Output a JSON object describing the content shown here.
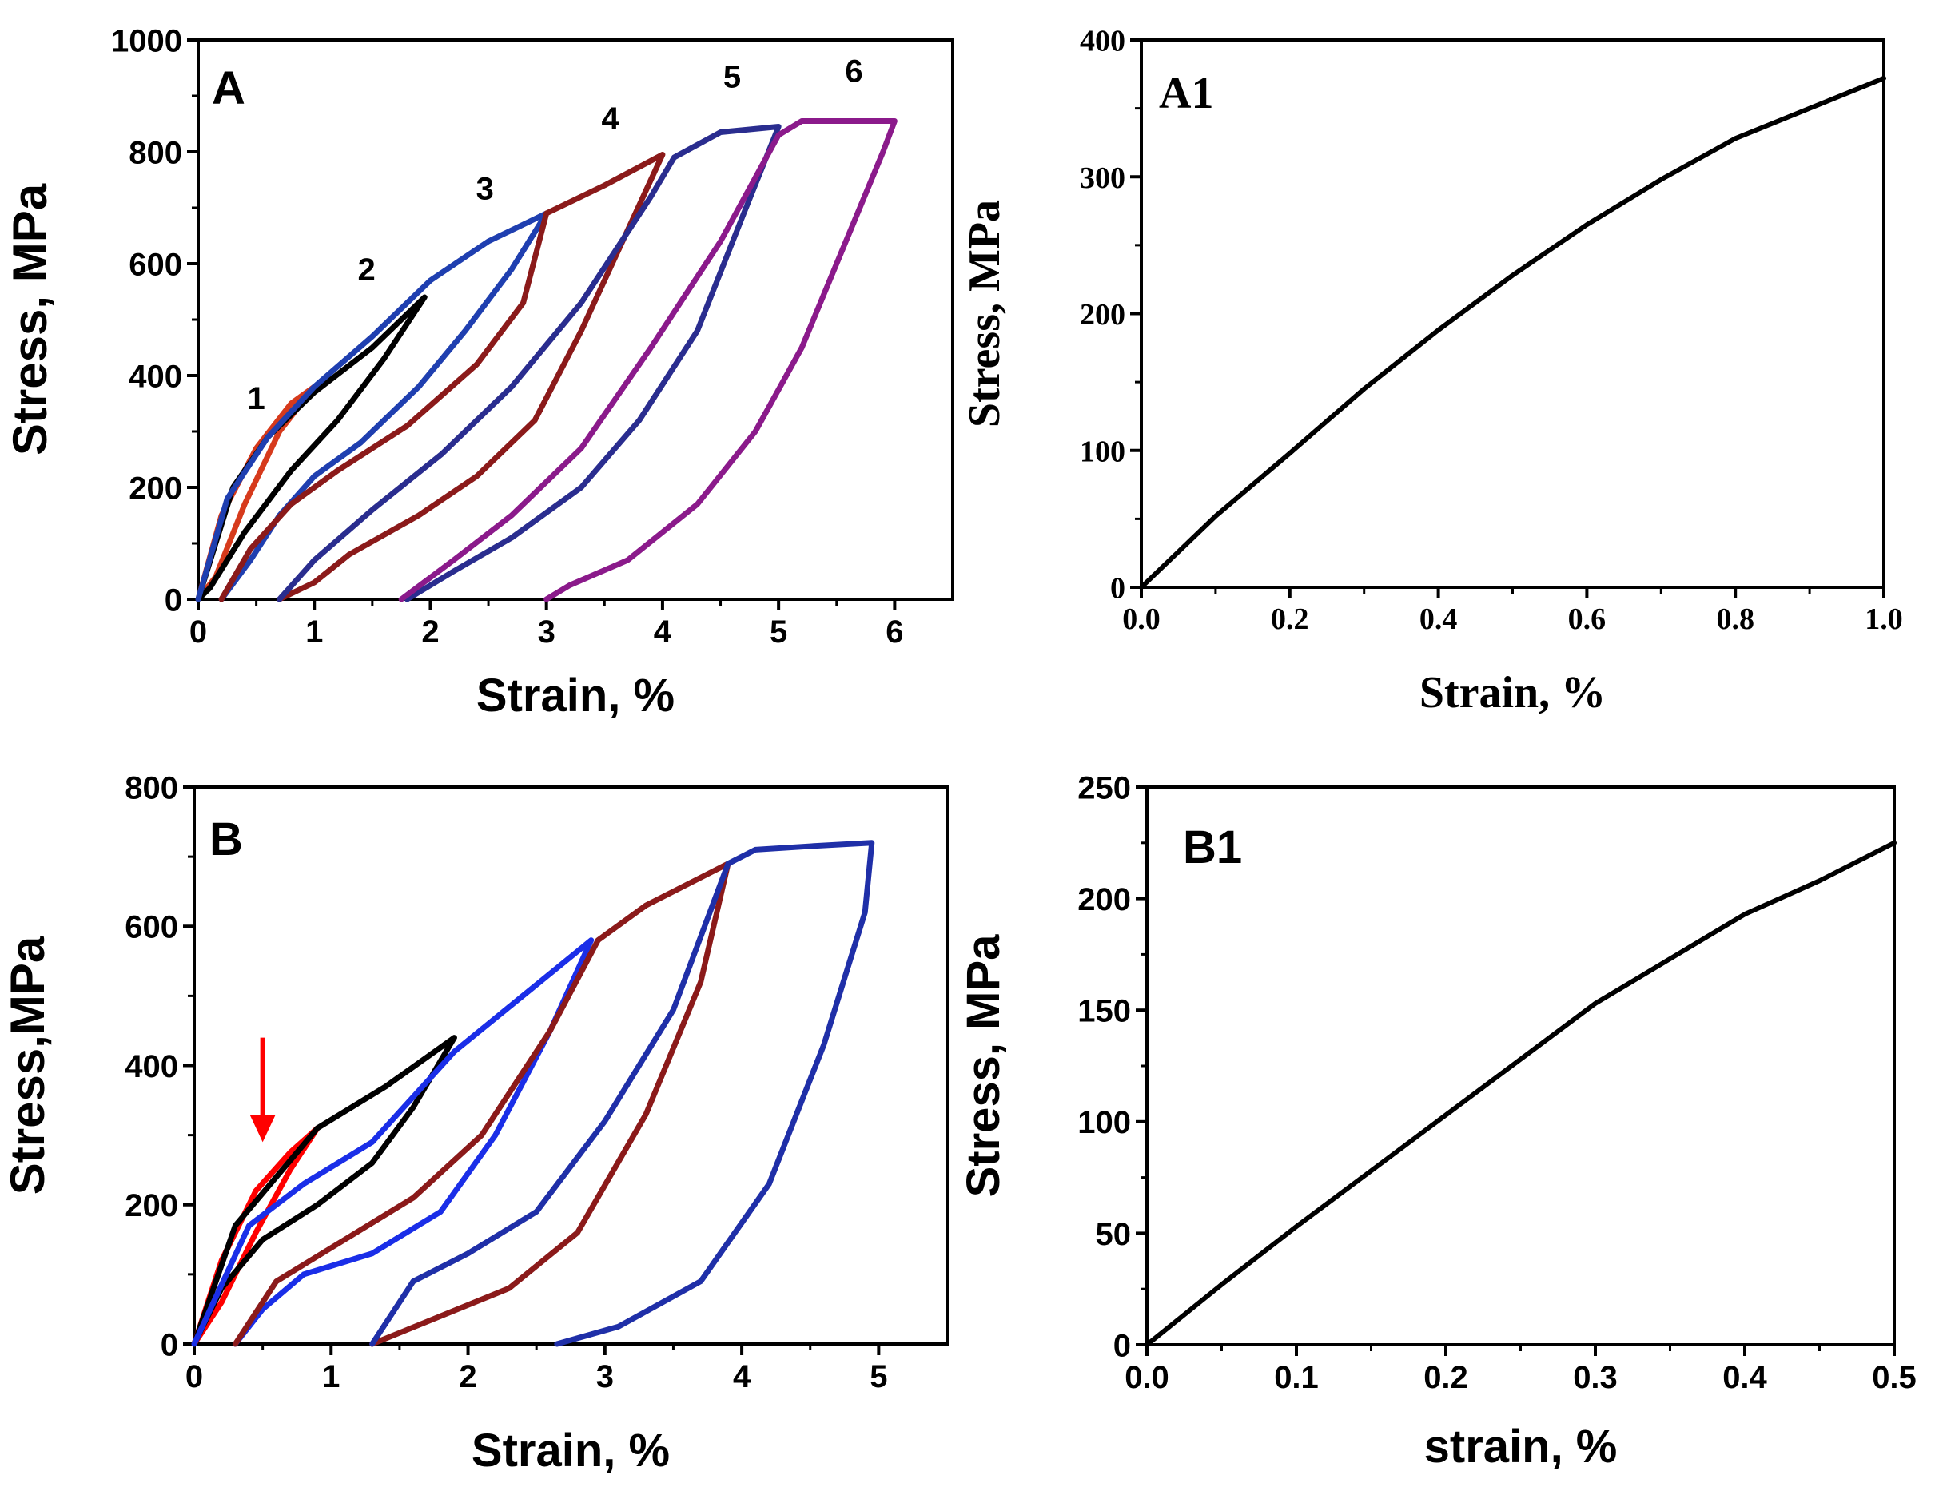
{
  "chart_data": [
    {
      "id": "A",
      "type": "line",
      "panel_label": "A",
      "font": "sans",
      "xlabel": "Strain, %",
      "ylabel": "Stress, MPa",
      "xlim": [
        0,
        6.5
      ],
      "ylim": [
        0,
        1000
      ],
      "xticks": [
        0,
        1,
        2,
        3,
        4,
        5,
        6
      ],
      "xtick_labels": [
        "0",
        "1",
        "2",
        "3",
        "4",
        "5",
        "6"
      ],
      "yticks": [
        0,
        200,
        400,
        600,
        800,
        1000
      ],
      "ytick_labels": [
        "0",
        "200",
        "400",
        "600",
        "800",
        "1000"
      ],
      "annotations": [
        {
          "text": "1",
          "x": 0.5,
          "y": 340
        },
        {
          "text": "2",
          "x": 1.45,
          "y": 570
        },
        {
          "text": "3",
          "x": 2.47,
          "y": 715
        },
        {
          "text": "4",
          "x": 3.55,
          "y": 840
        },
        {
          "text": "5",
          "x": 4.6,
          "y": 915
        },
        {
          "text": "6",
          "x": 5.65,
          "y": 925
        }
      ],
      "series": [
        {
          "color": "#d63a1c",
          "values": [
            [
              0,
              0
            ],
            [
              0.2,
              150
            ],
            [
              0.5,
              270
            ],
            [
              0.8,
              350
            ],
            [
              1.0,
              380
            ],
            [
              0.7,
              300
            ],
            [
              0.4,
              170
            ],
            [
              0.15,
              40
            ],
            [
              0,
              0
            ]
          ]
        },
        {
          "color": "#000000",
          "values": [
            [
              0,
              0
            ],
            [
              0.3,
              200
            ],
            [
              0.6,
              290
            ],
            [
              1.0,
              370
            ],
            [
              1.5,
              450
            ],
            [
              1.95,
              540
            ],
            [
              1.6,
              430
            ],
            [
              1.2,
              320
            ],
            [
              0.8,
              230
            ],
            [
              0.4,
              120
            ],
            [
              0.1,
              20
            ],
            [
              0,
              0
            ]
          ]
        },
        {
          "color": "#1f3fb0",
          "values": [
            [
              0,
              0
            ],
            [
              0.25,
              180
            ],
            [
              0.6,
              290
            ],
            [
              1.0,
              380
            ],
            [
              1.5,
              470
            ],
            [
              2.0,
              570
            ],
            [
              2.5,
              640
            ],
            [
              3.0,
              690
            ],
            [
              2.7,
              590
            ],
            [
              2.3,
              480
            ],
            [
              1.9,
              380
            ],
            [
              1.4,
              280
            ],
            [
              1.0,
              220
            ],
            [
              0.7,
              150
            ],
            [
              0.45,
              70
            ],
            [
              0.2,
              0
            ]
          ]
        },
        {
          "color": "#8b1a1a",
          "values": [
            [
              0.2,
              0
            ],
            [
              0.45,
              90
            ],
            [
              0.8,
              170
            ],
            [
              1.2,
              230
            ],
            [
              1.8,
              310
            ],
            [
              2.4,
              420
            ],
            [
              2.8,
              530
            ],
            [
              3.0,
              690
            ],
            [
              3.5,
              740
            ],
            [
              4.0,
              795
            ],
            [
              3.7,
              660
            ],
            [
              3.3,
              480
            ],
            [
              2.9,
              320
            ],
            [
              2.4,
              220
            ],
            [
              1.9,
              150
            ],
            [
              1.3,
              80
            ],
            [
              1.0,
              30
            ],
            [
              0.7,
              0
            ]
          ]
        },
        {
          "color": "#2a2d8f",
          "values": [
            [
              0.7,
              0
            ],
            [
              1.0,
              70
            ],
            [
              1.5,
              160
            ],
            [
              2.1,
              260
            ],
            [
              2.7,
              380
            ],
            [
              3.3,
              530
            ],
            [
              3.9,
              720
            ],
            [
              4.1,
              790
            ],
            [
              4.5,
              835
            ],
            [
              5.0,
              845
            ],
            [
              4.7,
              690
            ],
            [
              4.3,
              480
            ],
            [
              3.8,
              320
            ],
            [
              3.3,
              200
            ],
            [
              2.7,
              110
            ],
            [
              2.2,
              50
            ],
            [
              1.8,
              0
            ]
          ]
        },
        {
          "color": "#8b1a8b",
          "values": [
            [
              1.75,
              0
            ],
            [
              2.2,
              70
            ],
            [
              2.7,
              150
            ],
            [
              3.3,
              270
            ],
            [
              3.9,
              450
            ],
            [
              4.5,
              640
            ],
            [
              5.0,
              830
            ],
            [
              5.2,
              855
            ],
            [
              6.0,
              855
            ],
            [
              5.9,
              800
            ],
            [
              5.6,
              650
            ],
            [
              5.2,
              450
            ],
            [
              4.8,
              300
            ],
            [
              4.3,
              170
            ],
            [
              3.7,
              70
            ],
            [
              3.2,
              25
            ],
            [
              3.0,
              0
            ]
          ]
        }
      ]
    },
    {
      "id": "A1",
      "type": "line",
      "panel_label": "A1",
      "font": "serif",
      "xlabel": "Strain, %",
      "ylabel": "Stress, MPa",
      "xlim": [
        0,
        1.0
      ],
      "ylim": [
        0,
        400
      ],
      "xticks": [
        0,
        0.2,
        0.4,
        0.6,
        0.8,
        1.0
      ],
      "xtick_labels": [
        "0.0",
        "0.2",
        "0.4",
        "0.6",
        "0.8",
        "1.0"
      ],
      "yticks": [
        0,
        100,
        200,
        300,
        400
      ],
      "ytick_labels": [
        "0",
        "100",
        "200",
        "300",
        "400"
      ],
      "series": [
        {
          "color": "#000000",
          "values": [
            [
              0,
              0
            ],
            [
              0.1,
              52
            ],
            [
              0.2,
              98
            ],
            [
              0.3,
              145
            ],
            [
              0.4,
              188
            ],
            [
              0.5,
              228
            ],
            [
              0.6,
              265
            ],
            [
              0.7,
              298
            ],
            [
              0.8,
              328
            ],
            [
              0.9,
              350
            ],
            [
              1.0,
              372
            ]
          ]
        }
      ]
    },
    {
      "id": "B",
      "type": "line",
      "panel_label": "B",
      "font": "sans",
      "xlabel": "Strain, %",
      "ylabel": "Stress,MPa",
      "xlim": [
        0,
        5.5
      ],
      "ylim": [
        0,
        800
      ],
      "xticks": [
        0,
        1,
        2,
        3,
        4,
        5
      ],
      "xtick_labels": [
        "0",
        "1",
        "2",
        "3",
        "4",
        "5"
      ],
      "yticks": [
        0,
        200,
        400,
        600,
        800
      ],
      "ytick_labels": [
        "0",
        "200",
        "400",
        "600",
        "800"
      ],
      "series": [
        {
          "color": "#ff0000",
          "values": [
            [
              0,
              0
            ],
            [
              0.2,
              120
            ],
            [
              0.45,
              220
            ],
            [
              0.7,
              275
            ],
            [
              0.9,
              310
            ],
            [
              0.7,
              250
            ],
            [
              0.45,
              160
            ],
            [
              0.2,
              60
            ],
            [
              0,
              0
            ]
          ]
        },
        {
          "color": "#000000",
          "values": [
            [
              0,
              0
            ],
            [
              0.3,
              170
            ],
            [
              0.6,
              240
            ],
            [
              0.9,
              310
            ],
            [
              1.4,
              370
            ],
            [
              1.9,
              440
            ],
            [
              1.6,
              340
            ],
            [
              1.3,
              260
            ],
            [
              0.9,
              200
            ],
            [
              0.5,
              150
            ],
            [
              0.2,
              80
            ],
            [
              0,
              0
            ]
          ]
        },
        {
          "color": "#1a2ee8",
          "values": [
            [
              0,
              0
            ],
            [
              0.4,
              170
            ],
            [
              0.8,
              230
            ],
            [
              1.3,
              290
            ],
            [
              1.9,
              420
            ],
            [
              2.4,
              500
            ],
            [
              2.9,
              580
            ],
            [
              2.6,
              450
            ],
            [
              2.2,
              300
            ],
            [
              1.8,
              190
            ],
            [
              1.3,
              130
            ],
            [
              0.8,
              100
            ],
            [
              0.5,
              50
            ],
            [
              0.3,
              0
            ]
          ]
        },
        {
          "color": "#8b1a1a",
          "values": [
            [
              0.3,
              0
            ],
            [
              0.6,
              90
            ],
            [
              1.1,
              150
            ],
            [
              1.6,
              210
            ],
            [
              2.1,
              300
            ],
            [
              2.6,
              450
            ],
            [
              2.95,
              580
            ],
            [
              3.3,
              630
            ],
            [
              3.9,
              690
            ],
            [
              3.7,
              520
            ],
            [
              3.3,
              330
            ],
            [
              2.8,
              160
            ],
            [
              2.3,
              80
            ],
            [
              1.8,
              40
            ],
            [
              1.3,
              0
            ]
          ]
        },
        {
          "color": "#1f2fa8",
          "values": [
            [
              1.3,
              0
            ],
            [
              1.6,
              90
            ],
            [
              2.0,
              130
            ],
            [
              2.5,
              190
            ],
            [
              3.0,
              320
            ],
            [
              3.5,
              480
            ],
            [
              3.9,
              690
            ],
            [
              4.1,
              710
            ],
            [
              4.5,
              715
            ],
            [
              4.95,
              720
            ],
            [
              4.9,
              620
            ],
            [
              4.6,
              430
            ],
            [
              4.2,
              230
            ],
            [
              3.7,
              90
            ],
            [
              3.1,
              25
            ],
            [
              2.65,
              0
            ]
          ]
        }
      ],
      "arrow": {
        "x": 0.5,
        "y_from": 440,
        "y_to": 290,
        "color": "#ff0000"
      }
    },
    {
      "id": "B1",
      "type": "line",
      "panel_label": "B1",
      "font": "sans",
      "xlabel": "strain, %",
      "ylabel": "Stress, MPa",
      "xlim": [
        0,
        0.5
      ],
      "ylim": [
        0,
        250
      ],
      "xticks": [
        0,
        0.1,
        0.2,
        0.3,
        0.4,
        0.5
      ],
      "xtick_labels": [
        "0.0",
        "0.1",
        "0.2",
        "0.3",
        "0.4",
        "0.5"
      ],
      "yticks": [
        0,
        50,
        100,
        150,
        200,
        250
      ],
      "ytick_labels": [
        "0",
        "50",
        "100",
        "150",
        "200",
        "250"
      ],
      "series": [
        {
          "color": "#000000",
          "values": [
            [
              0,
              0
            ],
            [
              0.05,
              27
            ],
            [
              0.1,
              53
            ],
            [
              0.15,
              78
            ],
            [
              0.2,
              103
            ],
            [
              0.25,
              128
            ],
            [
              0.3,
              153
            ],
            [
              0.35,
              173
            ],
            [
              0.4,
              193
            ],
            [
              0.45,
              208
            ],
            [
              0.5,
              225
            ]
          ]
        }
      ]
    }
  ]
}
